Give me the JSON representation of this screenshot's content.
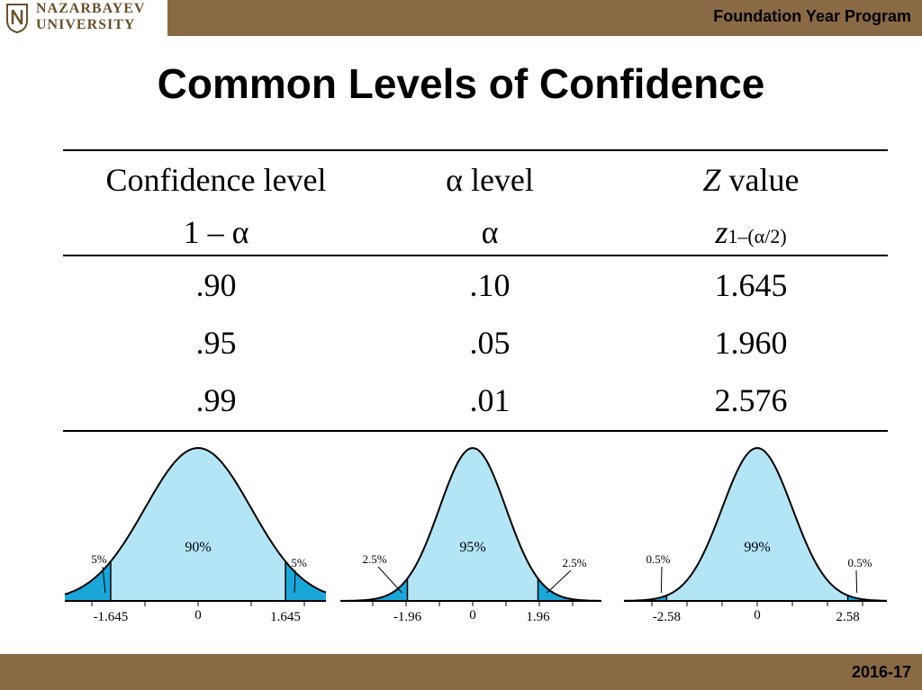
{
  "header": {
    "university_line1": "NAZARBAYEV",
    "university_line2": "UNIVERSITY",
    "program": "Foundation Year Program"
  },
  "slide": {
    "title": "Common Levels of Confidence"
  },
  "table": {
    "headers": [
      {
        "line1": "Confidence level",
        "line2": "1 – α"
      },
      {
        "line1": "α level",
        "line2": "α"
      },
      {
        "line1_italic": "Z",
        "line1_rest": " value",
        "line2_italic": "z",
        "line2_sub": "1–(α/2)"
      }
    ],
    "rows": [
      [
        ".90",
        ".10",
        "1.645"
      ],
      [
        ".95",
        ".05",
        "1.960"
      ],
      [
        ".99",
        ".01",
        "2.576"
      ]
    ]
  },
  "curves": [
    {
      "center_label": "90%",
      "tail_label": "5%",
      "left_z": "-1.645",
      "zero": "0",
      "right_z": "1.645",
      "z": 1.645
    },
    {
      "center_label": "95%",
      "tail_label": "2.5%",
      "left_z": "-1.96",
      "zero": "0",
      "right_z": "1.96",
      "z": 1.96
    },
    {
      "center_label": "99%",
      "tail_label": "0.5%",
      "left_z": "-2.58",
      "zero": "0",
      "right_z": "2.58",
      "z": 2.58
    }
  ],
  "footer": {
    "year": "2016-17"
  },
  "colors": {
    "bar": "#8a6a45",
    "curve_fill": "#b3e5f7",
    "tail_fill": "#1ba6d9"
  }
}
